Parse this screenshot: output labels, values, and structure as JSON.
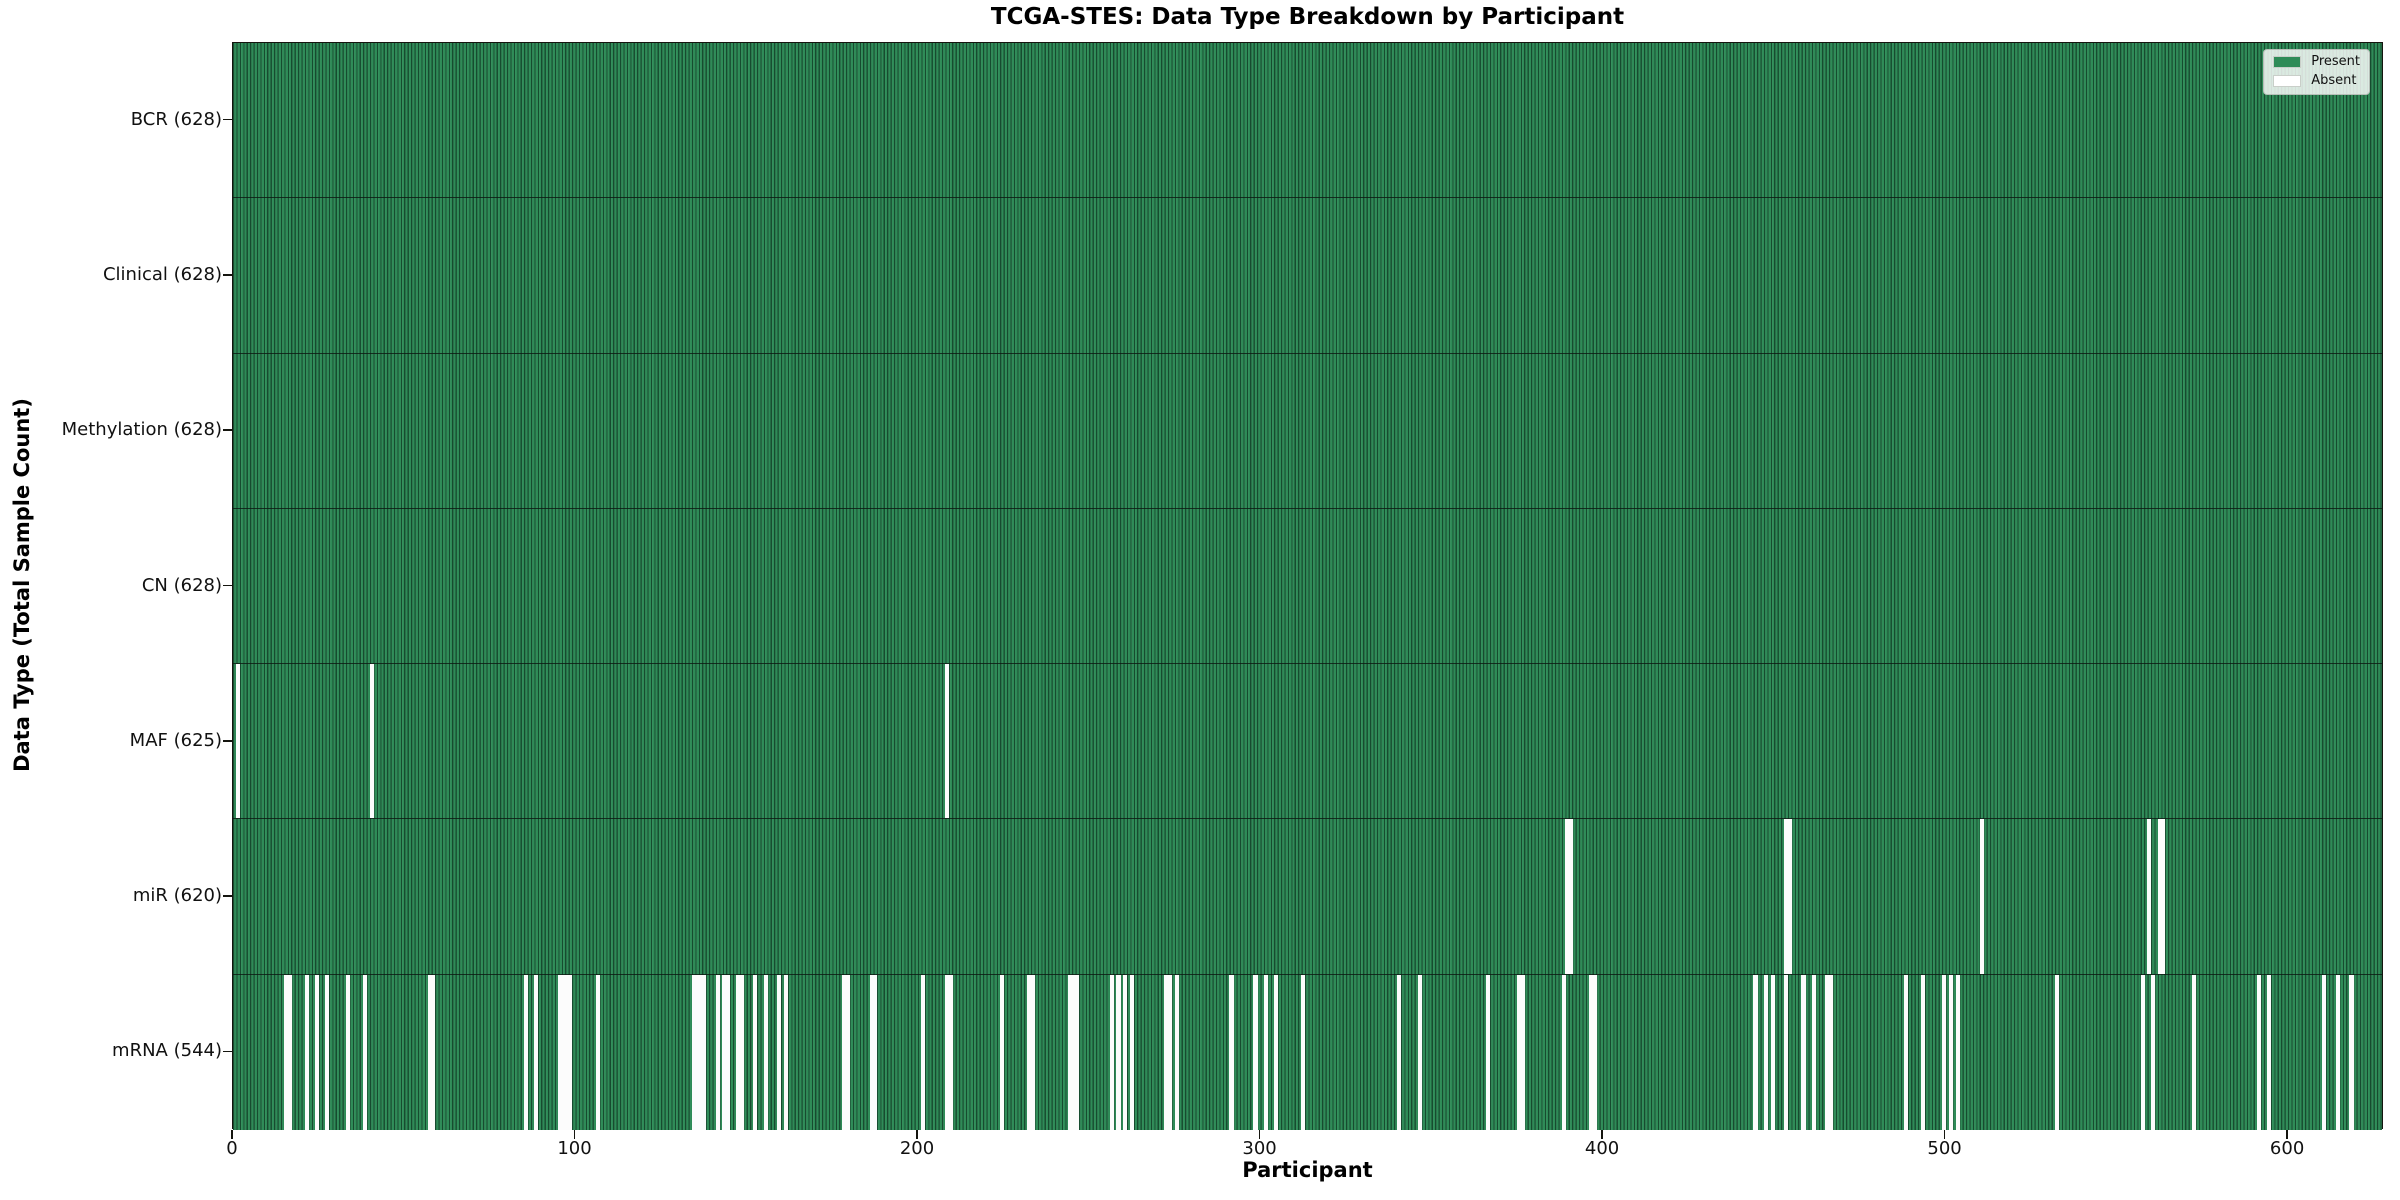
{
  "title": "TCGA-STES: Data Type Breakdown by Participant",
  "chart_data": {
    "type": "heatmap",
    "title": "TCGA-STES: Data Type Breakdown by Participant",
    "xlabel": "Participant",
    "ylabel": "Data Type (Total Sample Count)",
    "x_ticks": [
      0,
      100,
      200,
      300,
      400,
      500,
      600
    ],
    "x_range": [
      0,
      628
    ],
    "n_participants": 628,
    "grid": false,
    "colors": {
      "present": "#2e8b57",
      "absent": "#fcfcfc",
      "bar_edge": "#072114"
    },
    "legend": {
      "position": "upper right",
      "entries": [
        {
          "label": "Present",
          "color": "#2e8b57"
        },
        {
          "label": "Absent",
          "color": "#ffffff"
        }
      ]
    },
    "rows": [
      {
        "label": "BCR (628)",
        "data_type": "BCR",
        "present_count": 628,
        "absent_participants": []
      },
      {
        "label": "Clinical (628)",
        "data_type": "Clinical",
        "present_count": 628,
        "absent_participants": []
      },
      {
        "label": "Methylation (628)",
        "data_type": "Methylation",
        "present_count": 628,
        "absent_participants": []
      },
      {
        "label": "CN (628)",
        "data_type": "CN",
        "present_count": 628,
        "absent_participants": []
      },
      {
        "label": "MAF (625)",
        "data_type": "MAF",
        "present_count": 625,
        "absent_participants": [
          1,
          40,
          208
        ]
      },
      {
        "label": "miR (620)",
        "data_type": "miR",
        "present_count": 620,
        "absent_participants": [
          389,
          390,
          453,
          454,
          510,
          559,
          562,
          563
        ]
      },
      {
        "label": "mRNA (544)",
        "data_type": "mRNA",
        "present_count": 544,
        "absent_participants": [
          15,
          16,
          21,
          24,
          27,
          33,
          38,
          57,
          58,
          85,
          88,
          95,
          96,
          97,
          98,
          106,
          134,
          135,
          136,
          137,
          141,
          143,
          144,
          147,
          148,
          152,
          155,
          159,
          161,
          178,
          179,
          186,
          187,
          201,
          208,
          209,
          224,
          232,
          233,
          244,
          245,
          246,
          256,
          258,
          260,
          262,
          272,
          273,
          275,
          291,
          298,
          301,
          304,
          312,
          340,
          346,
          366,
          375,
          376,
          388,
          396,
          397,
          444,
          447,
          449,
          453,
          458,
          461,
          465,
          466,
          488,
          493,
          499,
          501,
          503,
          532,
          557,
          560,
          572,
          591,
          594,
          610,
          614,
          618
        ]
      }
    ]
  }
}
